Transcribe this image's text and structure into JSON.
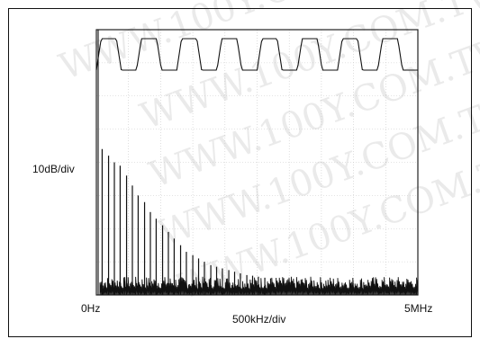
{
  "watermark": "WWW.100Y.COM.TW",
  "chart_data": {
    "type": "line",
    "ylabel": "10dB/div",
    "xlabel": "500kHz/div",
    "x_start_label": "0Hz",
    "x_end_label": "5MHz",
    "xlim": [
      0,
      5000000
    ],
    "x_divisions": 10,
    "y_divisions": 8,
    "time_trace": {
      "shape": "square-wave",
      "cycles": 8
    },
    "spectrum": {
      "fundamental_hz": 93000,
      "harmonic_peaks": [
        {
          "f_mhz": 0.09,
          "level_div": 4.4
        },
        {
          "f_mhz": 0.19,
          "level_div": 4.2
        },
        {
          "f_mhz": 0.28,
          "level_div": 4.0
        },
        {
          "f_mhz": 0.37,
          "level_div": 3.9
        },
        {
          "f_mhz": 0.47,
          "level_div": 3.6
        },
        {
          "f_mhz": 0.56,
          "level_div": 3.3
        },
        {
          "f_mhz": 0.65,
          "level_div": 3.0
        },
        {
          "f_mhz": 0.75,
          "level_div": 2.8
        },
        {
          "f_mhz": 0.84,
          "level_div": 2.5
        },
        {
          "f_mhz": 0.93,
          "level_div": 2.3
        },
        {
          "f_mhz": 1.03,
          "level_div": 2.1
        },
        {
          "f_mhz": 1.12,
          "level_div": 1.9
        },
        {
          "f_mhz": 1.21,
          "level_div": 1.7
        },
        {
          "f_mhz": 1.31,
          "level_div": 1.5
        },
        {
          "f_mhz": 1.4,
          "level_div": 1.3
        },
        {
          "f_mhz": 1.5,
          "level_div": 1.2
        },
        {
          "f_mhz": 1.59,
          "level_div": 1.1
        },
        {
          "f_mhz": 1.68,
          "level_div": 1.0
        },
        {
          "f_mhz": 1.78,
          "level_div": 0.9
        },
        {
          "f_mhz": 1.87,
          "level_div": 0.85
        },
        {
          "f_mhz": 1.96,
          "level_div": 0.8
        },
        {
          "f_mhz": 2.06,
          "level_div": 0.75
        },
        {
          "f_mhz": 2.15,
          "level_div": 0.7
        },
        {
          "f_mhz": 2.24,
          "level_div": 0.65
        },
        {
          "f_mhz": 2.34,
          "level_div": 0.6
        },
        {
          "f_mhz": 2.43,
          "level_div": 0.58
        },
        {
          "f_mhz": 2.52,
          "level_div": 0.55
        },
        {
          "f_mhz": 2.62,
          "level_div": 0.52
        },
        {
          "f_mhz": 2.71,
          "level_div": 0.5
        }
      ],
      "noise_floor_div": 0.2,
      "zero_hz_spike_level_div": 8.0
    },
    "colors": {
      "trace": "#111111",
      "grid": "#c8c8c8",
      "frame": "#222222"
    }
  }
}
